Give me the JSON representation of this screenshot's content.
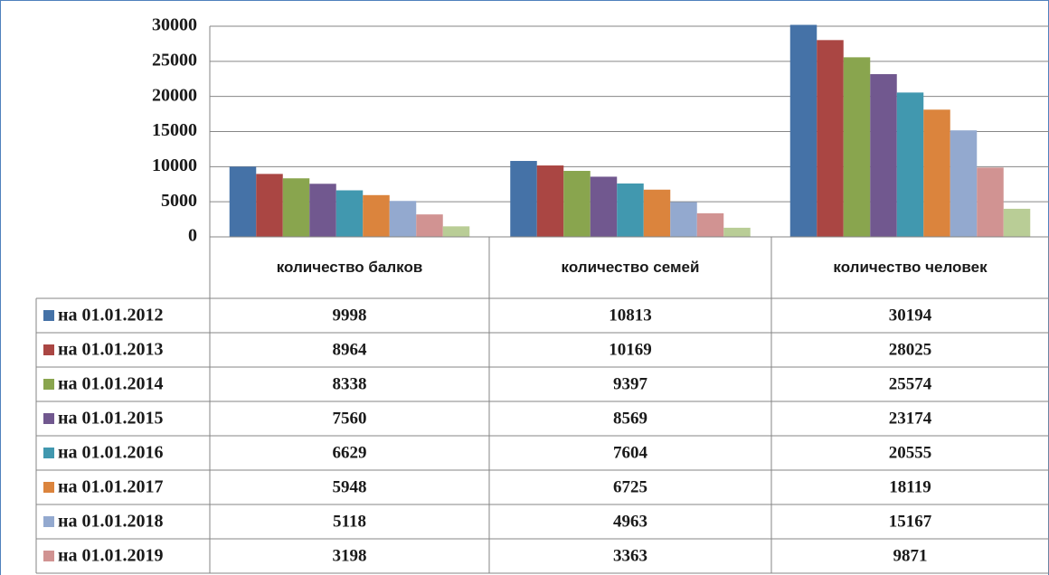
{
  "chart_data": {
    "type": "bar",
    "categories": [
      "количество балков",
      "количество семей",
      "количество человек"
    ],
    "series": [
      {
        "name": "на 01.01.2012",
        "color": "#4572a7",
        "values": [
          9998,
          10813,
          30194
        ]
      },
      {
        "name": "на 01.01.2013",
        "color": "#aa4643",
        "values": [
          8964,
          10169,
          28025
        ]
      },
      {
        "name": "на 01.01.2014",
        "color": "#89a54e",
        "values": [
          8338,
          9397,
          25574
        ]
      },
      {
        "name": "на 01.01.2015",
        "color": "#71588f",
        "values": [
          7560,
          8569,
          23174
        ]
      },
      {
        "name": "на 01.01.2016",
        "color": "#4198af",
        "values": [
          6629,
          7604,
          20555
        ]
      },
      {
        "name": "на 01.01.2017",
        "color": "#db843d",
        "values": [
          5948,
          6725,
          18119
        ]
      },
      {
        "name": "на 01.01.2018",
        "color": "#93a9cf",
        "values": [
          5118,
          4963,
          15167
        ]
      },
      {
        "name": "на 01.01.2019",
        "color": "#d19392",
        "values": [
          3198,
          3363,
          9871
        ]
      },
      {
        "color": "#b9cd96",
        "values": [
          1500,
          1300,
          4000
        ]
      }
    ],
    "ylim": [
      0,
      30000
    ],
    "yticks": [
      0,
      5000,
      10000,
      15000,
      20000,
      25000,
      30000
    ],
    "grid": true
  }
}
